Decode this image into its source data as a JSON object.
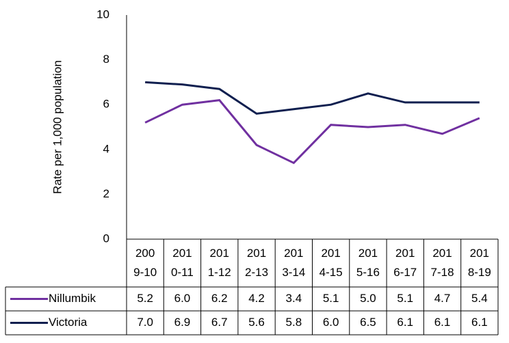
{
  "chart_data": {
    "type": "line",
    "y_label": "Rate per 1,000 population",
    "categories": [
      "2009-10",
      "2010-11",
      "2011-12",
      "2012-13",
      "2013-14",
      "2014-15",
      "2015-16",
      "2016-17",
      "2017-18",
      "2018-19"
    ],
    "series": [
      {
        "name": "Nillumbik",
        "color": "#7030a0",
        "values": [
          5.2,
          6.0,
          6.2,
          4.2,
          3.4,
          5.1,
          5.0,
          5.1,
          4.7,
          5.4
        ],
        "value_labels": [
          "5.2",
          "6.0",
          "6.2",
          "4.2",
          "3.4",
          "5.1",
          "5.0",
          "5.1",
          "4.7",
          "5.4"
        ]
      },
      {
        "name": "Victoria",
        "color": "#0f1f4f",
        "values": [
          7.0,
          6.9,
          6.7,
          5.6,
          5.8,
          6.0,
          6.5,
          6.1,
          6.1,
          6.1
        ],
        "value_labels": [
          "7.0",
          "6.9",
          "6.7",
          "5.6",
          "5.8",
          "6.0",
          "6.5",
          "6.1",
          "6.1",
          "6.1"
        ]
      }
    ],
    "ylim": [
      0,
      10
    ],
    "yticks": [
      0,
      2,
      4,
      6,
      8,
      10
    ]
  }
}
